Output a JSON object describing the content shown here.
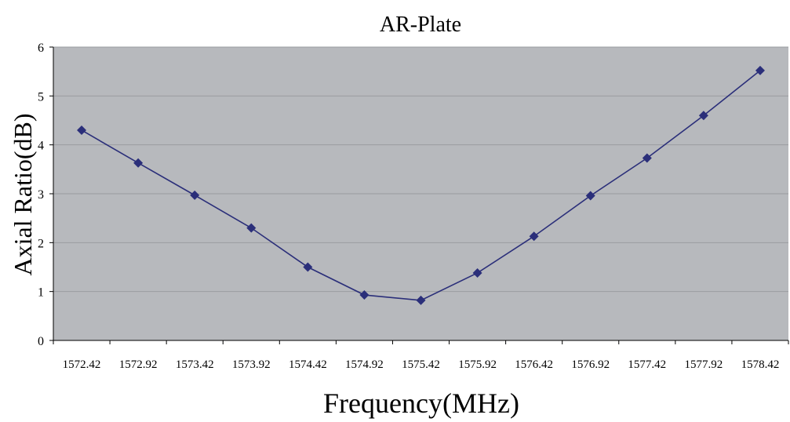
{
  "chart_data": {
    "type": "line",
    "title": "AR-Plate",
    "xlabel": "Frequency(MHz)",
    "ylabel": "Axial Ratio(dB)",
    "ylim": [
      0,
      6
    ],
    "yticks": [
      "0",
      "1",
      "2",
      "3",
      "4",
      "5",
      "6"
    ],
    "categories": [
      "1572.42",
      "1572.92",
      "1573.42",
      "1573.92",
      "1574.42",
      "1574.92",
      "1575.42",
      "1575.92",
      "1576.42",
      "1576.92",
      "1577.42",
      "1577.92",
      "1578.42"
    ],
    "series": [
      {
        "values": [
          4.3,
          3.63,
          2.97,
          2.3,
          1.5,
          0.93,
          0.82,
          1.38,
          2.13,
          2.96,
          3.73,
          4.6,
          5.52
        ],
        "color": "#2b2f7a",
        "marker": "diamond"
      }
    ],
    "grid": "horizontal",
    "plot_background": "#b7b9bd",
    "legend": "none"
  }
}
